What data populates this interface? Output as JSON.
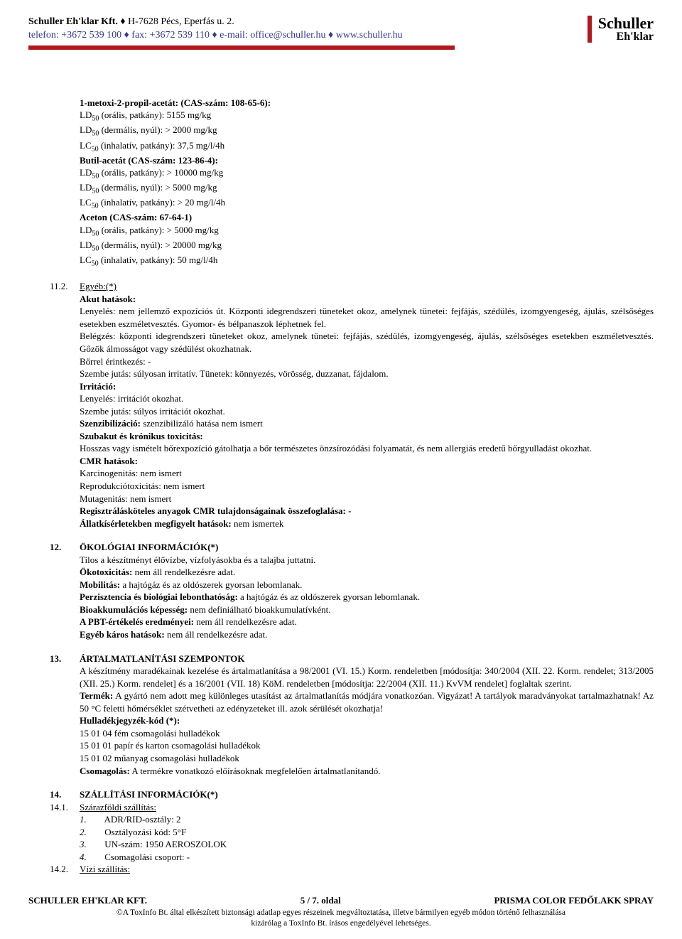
{
  "header": {
    "company": "Schuller Eh'klar Kft.",
    "address": "H-7628 Pécs, Eperfás u. 2.",
    "contact": "telefon: +3672 539 100 ♦ fax: +3672 539 110 ♦ e-mail: office@schuller.hu ♦ www.schuller.hu",
    "logo_top": "Schuller",
    "logo_bottom": "Eh'klar"
  },
  "chem_block": {
    "lines": [
      "1-metoxi-2-propil-acetát: (CAS-szám: 108-65-6):",
      "LD₅₀ (orális, patkány): 5155 mg/kg",
      "LD₅₀ (dermális, nyúl): > 2000 mg/kg",
      "LC₅₀ (inhalatív, patkány): 37,5 mg/l/4h",
      "Butil-acetát (CAS-szám: 123-86-4):",
      "LD₅₀ (orális, patkány): > 10000 mg/kg",
      "LD₅₀ (dermális, nyúl): > 5000 mg/kg",
      "LC₅₀ (inhalatív, patkány): > 20 mg/l/4h",
      "Aceton (CAS-szám: 67-64-1)",
      "LD₅₀ (orális, patkány): > 5000 mg/kg",
      "LD₅₀ (dermális, nyúl): > 20000 mg/kg",
      "LC₅₀ (inhalatív, patkány): 50 mg/l/4h"
    ],
    "bold_idx": [
      0,
      4,
      8
    ]
  },
  "s11_2": {
    "num": "11.2.",
    "title": "Egyéb:(*)",
    "lines": [
      {
        "b": "Akut hatások:"
      },
      {
        "t": "Lenyelés: nem jellemző expozíciós út. Központi idegrendszeri tüneteket okoz, amelynek tünetei: fejfájás, szédülés, izomgyengeség, ájulás, szélsőséges esetekben eszméletvesztés. Gyomor- és bélpanaszok léphetnek fel."
      },
      {
        "t": "Belégzés: központi idegrendszeri tüneteket okoz, amelynek tünetei: fejfájás, szédülés, izomgyengeség, ájulás, szélsőséges esetekben eszméletvesztés. Gőzök álmosságot vagy szédülést okozhatnak."
      },
      {
        "t": "Bőrrel érintkezés: -"
      },
      {
        "t": "Szembe jutás: súlyosan irritatív. Tünetek: könnyezés, vörösség, duzzanat, fájdalom."
      },
      {
        "b": "Irritáció:"
      },
      {
        "t": "Lenyelés: irritációt okozhat."
      },
      {
        "t": "Szembe jutás: súlyos irritációt okozhat."
      },
      {
        "kv": {
          "k": "Szenzibilizáció:",
          "v": " szenzibilizáló hatása nem ismert"
        }
      },
      {
        "b": "Szubakut és krónikus toxicitás:"
      },
      {
        "t": "Hosszas vagy ismételt bőrexpozíció gátolhatja a bőr természetes önzsírozódási folyamatát, és nem allergiás eredetű bőrgyulladást okozhat."
      },
      {
        "b": "CMR hatások:"
      },
      {
        "t": "Karcinogenitás: nem ismert"
      },
      {
        "t": "Reprodukciótoxicitás: nem ismert"
      },
      {
        "t": "Mutagenitás: nem ismert"
      },
      {
        "b": "Regisztrálásköteles anyagok CMR tulajdonságainak összefoglalása: -"
      },
      {
        "kv": {
          "k": "Állatkísérletekben megfigyelt hatások:",
          "v": " nem ismertek"
        }
      }
    ]
  },
  "s12": {
    "num": "12.",
    "title": "ÖKOLÓGIAI INFORMÁCIÓK(*)",
    "rows": [
      {
        "k": "",
        "v": "Tilos a készítményt élővízbe, vízfolyásokba és a talajba juttatni."
      },
      {
        "k": "Ökotoxicitás:",
        "v": " nem áll rendelkezésre adat."
      },
      {
        "k": "Mobilitás:",
        "v": " a hajtógáz és az oldószerek gyorsan lebomlanak."
      },
      {
        "k": "Perzisztencia és biológiai lebonthatóság:",
        "v": " a hajtógáz és az oldószerek gyorsan lebomlanak."
      },
      {
        "k": "Bioakkumulációs képesség:",
        "v": " nem definiálható bioakkumulatívként."
      },
      {
        "k": "A PBT-értékelés eredményei:",
        "v": " nem áll rendelkezésre adat."
      },
      {
        "k": "Egyéb káros hatások:",
        "v": " nem áll rendelkezésre adat."
      }
    ]
  },
  "s13": {
    "num": "13.",
    "title": "ÁRTALMATLANÍTÁSI SZEMPONTOK",
    "intro": "A készítmény maradékainak kezelése és ártalmatlanítása a 98/2001 (VI. 15.) Korm. rendeletben [módosítja: 340/2004 (XII. 22. Korm. rendelet; 313/2005 (XII. 25.) Korm. rendelet] és a 16/2001 (VII. 18) KöM. rendeletben [módosítja: 22/2004 (XII. 11.) KvVM rendelet] foglaltak szerint.",
    "termek_key": "Termék:",
    "termek_val": " A gyártó nem adott meg különleges utasítást az ártalmatlanítás módjára vonatkozóan. Vigyázat! A tartályok maradványokat tartalmazhatnak! Az 50 °C feletti hőmérséklet szétvetheti az edényzeteket ill. azok sérülését okozhatja!",
    "hkod": "Hulladékjegyzék-kód (*):",
    "codes": [
      "15 01 04 fém csomagolási hulladékok",
      "15 01 01 papír és karton csomagolási hulladékok",
      "15 01 02 műanyag csomagolási hulladékok"
    ],
    "csom_key": "Csomagolás:",
    "csom_val": " A termékre vonatkozó előírásoknak megfelelően ártalmatlanítandó."
  },
  "s14": {
    "num": "14.",
    "title": "SZÁLLÍTÁSI INFORMÁCIÓK(*)"
  },
  "s14_1": {
    "num": "14.1.",
    "title": "Szárazföldi szállítás:",
    "items": [
      "ADR/RID-osztály: 2",
      "Osztályozási kód: 5°F",
      "UN-szám: 1950 AEROSZOLOK",
      "Csomagolási csoport: -"
    ]
  },
  "s14_2": {
    "num": "14.2.",
    "title": "Vízi szállítás:"
  },
  "footer": {
    "left": "SCHULLER EH'KLAR KFT.",
    "center": "5 / 7. oldal",
    "right": "PRISMA COLOR FEDŐLAKK SPRAY",
    "fine1": "©A ToxInfo Bt. által elkészített biztonsági adatlap egyes részeinek megváltoztatása, illetve bármilyen egyéb módon történő felhasználása",
    "fine2": "kizárólag a ToxInfo Bt. írásos engedélyével lehetséges."
  }
}
